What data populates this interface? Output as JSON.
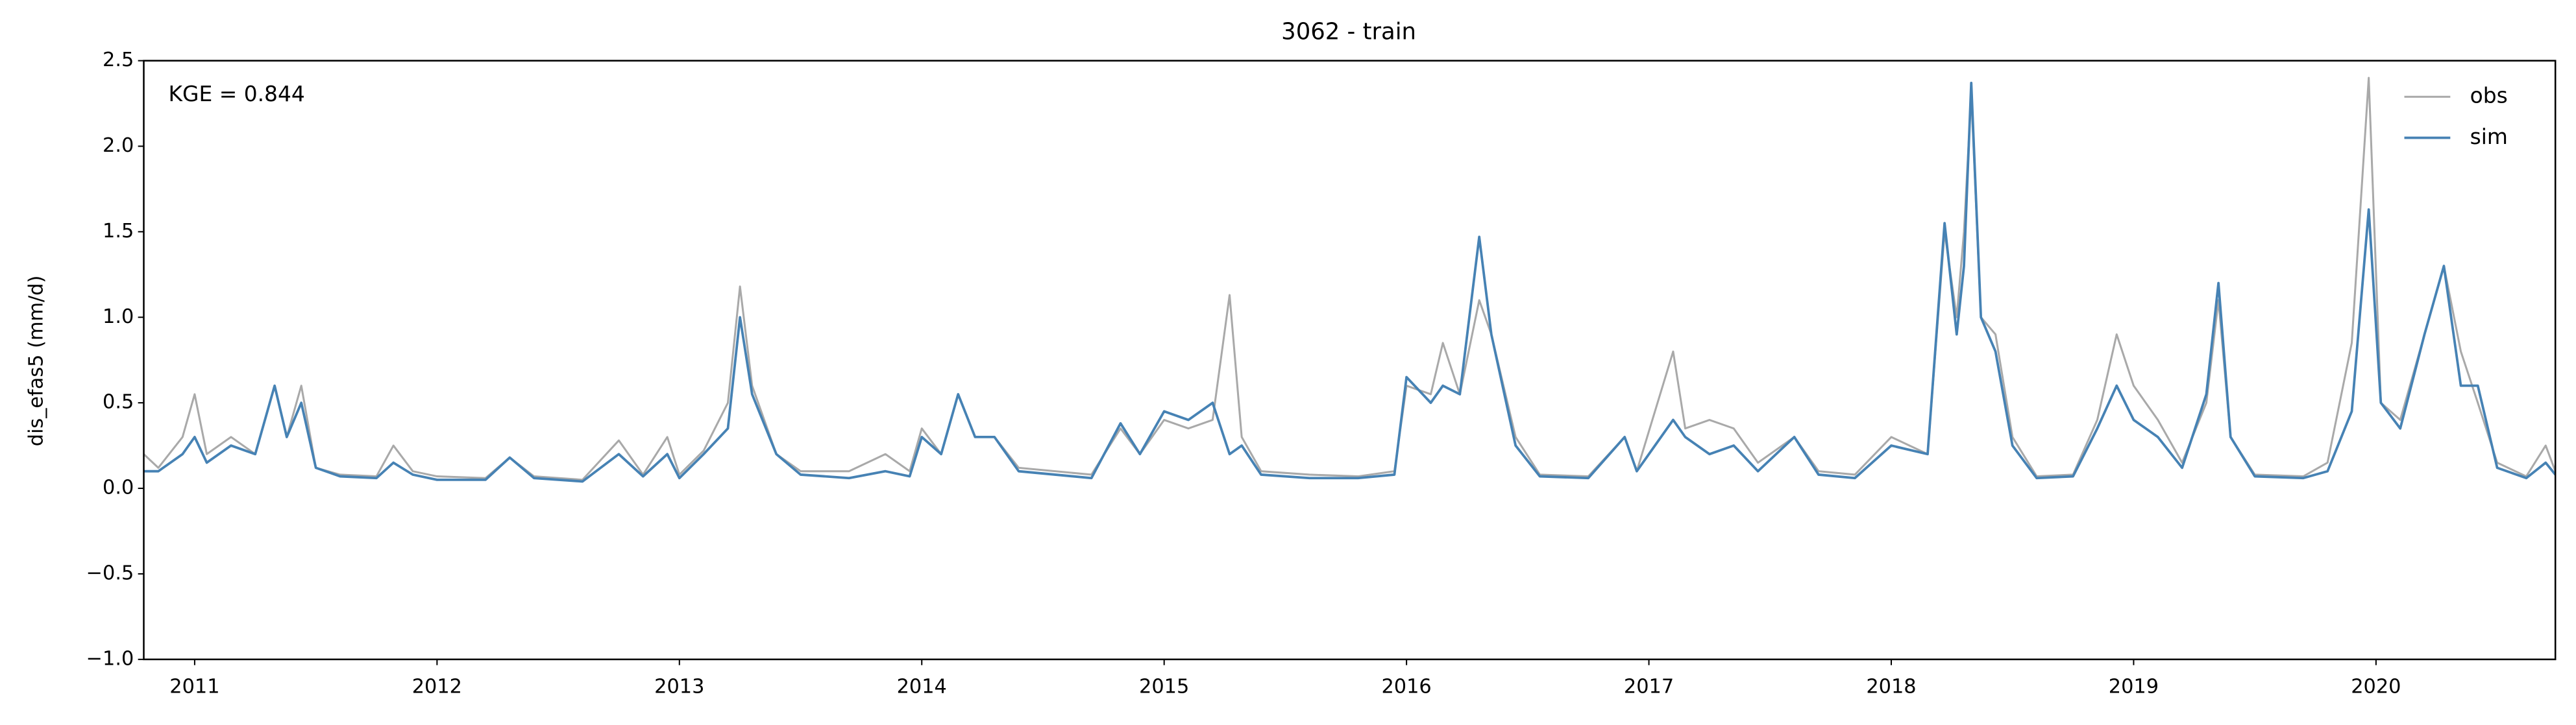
{
  "chart_data": {
    "type": "line",
    "title": "3062 - train",
    "y_label": "dis_efas5 (mm/d)",
    "annotation": "KGE = 0.844",
    "legend_position": "upper right",
    "grid": false,
    "xlim": [
      2010.79,
      2020.74
    ],
    "xticks": [
      2011,
      2012,
      2013,
      2014,
      2015,
      2016,
      2017,
      2018,
      2019,
      2020
    ],
    "ylim": [
      -1.0,
      2.5
    ],
    "yticks": [
      {
        "value": -1.0,
        "label": "−1.0"
      },
      {
        "value": -0.5,
        "label": "−0.5"
      },
      {
        "value": 0,
        "label": "0.0"
      },
      0.5,
      {
        "value": 1,
        "label": "1.0"
      },
      1.5,
      {
        "value": 2,
        "label": "2.0"
      },
      2.5
    ],
    "x": [
      2010.79,
      2010.85,
      2010.95,
      2011.0,
      2011.05,
      2011.15,
      2011.25,
      2011.33,
      2011.38,
      2011.44,
      2011.5,
      2011.6,
      2011.75,
      2011.82,
      2011.9,
      2012.0,
      2012.2,
      2012.3,
      2012.4,
      2012.6,
      2012.75,
      2012.85,
      2012.95,
      2013.0,
      2013.1,
      2013.2,
      2013.25,
      2013.3,
      2013.4,
      2013.5,
      2013.7,
      2013.85,
      2013.95,
      2014.0,
      2014.08,
      2014.15,
      2014.22,
      2014.3,
      2014.4,
      2014.55,
      2014.7,
      2014.82,
      2014.9,
      2015.0,
      2015.1,
      2015.2,
      2015.27,
      2015.32,
      2015.4,
      2015.6,
      2015.8,
      2015.95,
      2016.0,
      2016.1,
      2016.15,
      2016.22,
      2016.3,
      2016.35,
      2016.45,
      2016.55,
      2016.75,
      2016.9,
      2016.95,
      2017.1,
      2017.15,
      2017.25,
      2017.35,
      2017.45,
      2017.6,
      2017.7,
      2017.85,
      2018.0,
      2018.15,
      2018.22,
      2018.27,
      2018.3,
      2018.33,
      2018.37,
      2018.43,
      2018.5,
      2018.6,
      2018.75,
      2018.85,
      2018.93,
      2019.0,
      2019.1,
      2019.2,
      2019.3,
      2019.35,
      2019.4,
      2019.5,
      2019.7,
      2019.8,
      2019.9,
      2019.97,
      2020.02,
      2020.1,
      2020.2,
      2020.28,
      2020.35,
      2020.42,
      2020.5,
      2020.62,
      2020.7,
      2020.74
    ],
    "series": [
      {
        "name": "obs",
        "color": "#a9a9a9",
        "width": 1.2,
        "values": [
          0.2,
          0.12,
          0.3,
          0.55,
          0.2,
          0.3,
          0.2,
          0.6,
          0.3,
          0.6,
          0.12,
          0.08,
          0.07,
          0.25,
          0.1,
          0.07,
          0.06,
          0.18,
          0.07,
          0.05,
          0.28,
          0.08,
          0.3,
          0.08,
          0.22,
          0.5,
          1.18,
          0.6,
          0.2,
          0.1,
          0.1,
          0.2,
          0.1,
          0.35,
          0.2,
          0.55,
          0.3,
          0.3,
          0.12,
          0.1,
          0.08,
          0.35,
          0.2,
          0.4,
          0.35,
          0.4,
          1.13,
          0.3,
          0.1,
          0.08,
          0.07,
          0.1,
          0.6,
          0.55,
          0.85,
          0.55,
          1.1,
          0.9,
          0.3,
          0.08,
          0.07,
          0.3,
          0.1,
          0.8,
          0.35,
          0.4,
          0.35,
          0.15,
          0.3,
          0.1,
          0.08,
          0.3,
          0.2,
          1.5,
          1.0,
          1.5,
          2.3,
          1.0,
          0.9,
          0.3,
          0.07,
          0.08,
          0.4,
          0.9,
          0.6,
          0.4,
          0.15,
          0.5,
          1.1,
          0.3,
          0.08,
          0.07,
          0.15,
          0.85,
          2.4,
          0.5,
          0.4,
          0.9,
          1.3,
          0.8,
          0.5,
          0.15,
          0.07,
          0.25,
          0.1
        ]
      },
      {
        "name": "sim",
        "color": "#4682b4",
        "width": 1.5,
        "values": [
          0.1,
          0.1,
          0.2,
          0.3,
          0.15,
          0.25,
          0.2,
          0.6,
          0.3,
          0.5,
          0.12,
          0.07,
          0.06,
          0.15,
          0.08,
          0.05,
          0.05,
          0.18,
          0.06,
          0.04,
          0.2,
          0.07,
          0.2,
          0.06,
          0.2,
          0.35,
          1.0,
          0.55,
          0.2,
          0.08,
          0.06,
          0.1,
          0.07,
          0.3,
          0.2,
          0.55,
          0.3,
          0.3,
          0.1,
          0.08,
          0.06,
          0.38,
          0.2,
          0.45,
          0.4,
          0.5,
          0.2,
          0.25,
          0.08,
          0.06,
          0.06,
          0.08,
          0.65,
          0.5,
          0.6,
          0.55,
          1.47,
          0.9,
          0.25,
          0.07,
          0.06,
          0.3,
          0.1,
          0.4,
          0.3,
          0.2,
          0.25,
          0.1,
          0.3,
          0.08,
          0.06,
          0.25,
          0.2,
          1.55,
          0.9,
          1.3,
          2.37,
          1.0,
          0.8,
          0.25,
          0.06,
          0.07,
          0.35,
          0.6,
          0.4,
          0.3,
          0.12,
          0.55,
          1.2,
          0.3,
          0.07,
          0.06,
          0.1,
          0.45,
          1.63,
          0.5,
          0.35,
          0.9,
          1.3,
          0.6,
          0.6,
          0.12,
          0.06,
          0.15,
          0.08
        ]
      }
    ]
  }
}
